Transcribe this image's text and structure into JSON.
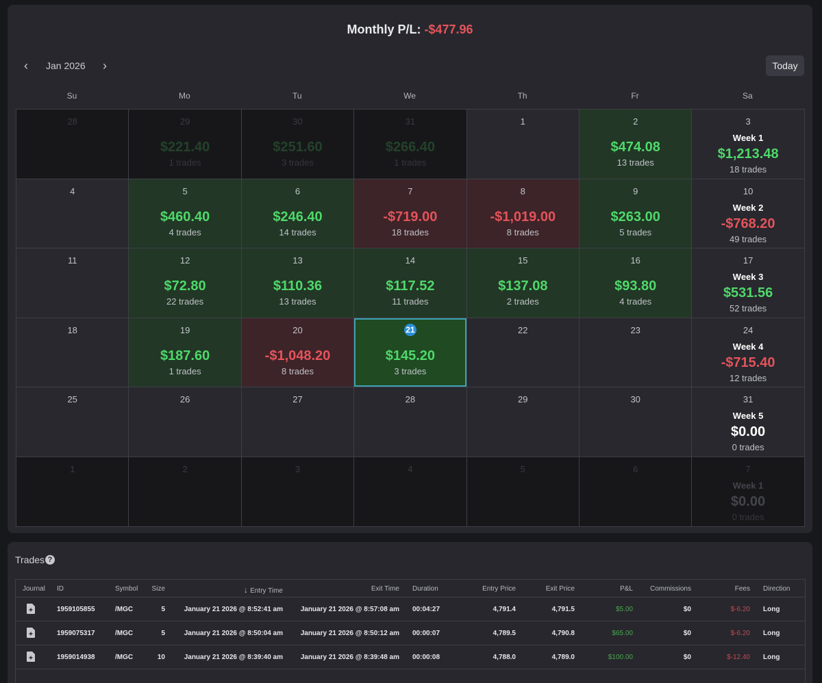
{
  "header": {
    "monthly_label": "Monthly P/L:",
    "monthly_value": "-$477.96",
    "month": "Jan 2026",
    "today_label": "Today",
    "prev_icon": "chevron-left-icon",
    "next_icon": "chevron-right-icon"
  },
  "weekdays": [
    "Su",
    "Mo",
    "Tu",
    "We",
    "Th",
    "Fr",
    "Sa"
  ],
  "calendar": {
    "rows": [
      [
        {
          "day": "28",
          "state": "other"
        },
        {
          "day": "29",
          "state": "other",
          "amount": "$221.40",
          "trades": "1 trades"
        },
        {
          "day": "30",
          "state": "other",
          "amount": "$251.60",
          "trades": "3 trades"
        },
        {
          "day": "31",
          "state": "other",
          "amount": "$266.40",
          "trades": "1 trades"
        },
        {
          "day": "1",
          "state": "cur"
        },
        {
          "day": "2",
          "state": "pos",
          "amount": "$474.08",
          "trades": "13 trades"
        },
        {
          "day": "3",
          "state": "week",
          "week": "Week 1",
          "amount": "$1,213.48",
          "trades": "18 trades",
          "sign": "pos"
        }
      ],
      [
        {
          "day": "4",
          "state": "cur"
        },
        {
          "day": "5",
          "state": "pos",
          "amount": "$460.40",
          "trades": "4 trades"
        },
        {
          "day": "6",
          "state": "pos",
          "amount": "$246.40",
          "trades": "14 trades"
        },
        {
          "day": "7",
          "state": "neg",
          "amount": "-$719.00",
          "trades": "18 trades"
        },
        {
          "day": "8",
          "state": "neg",
          "amount": "-$1,019.00",
          "trades": "8 trades"
        },
        {
          "day": "9",
          "state": "pos",
          "amount": "$263.00",
          "trades": "5 trades"
        },
        {
          "day": "10",
          "state": "week",
          "week": "Week 2",
          "amount": "-$768.20",
          "trades": "49 trades",
          "sign": "neg"
        }
      ],
      [
        {
          "day": "11",
          "state": "cur"
        },
        {
          "day": "12",
          "state": "pos",
          "amount": "$72.80",
          "trades": "22 trades"
        },
        {
          "day": "13",
          "state": "pos",
          "amount": "$110.36",
          "trades": "13 trades"
        },
        {
          "day": "14",
          "state": "pos",
          "amount": "$117.52",
          "trades": "11 trades"
        },
        {
          "day": "15",
          "state": "pos",
          "amount": "$137.08",
          "trades": "2 trades"
        },
        {
          "day": "16",
          "state": "pos",
          "amount": "$93.80",
          "trades": "4 trades"
        },
        {
          "day": "17",
          "state": "week",
          "week": "Week 3",
          "amount": "$531.56",
          "trades": "52 trades",
          "sign": "pos"
        }
      ],
      [
        {
          "day": "18",
          "state": "cur"
        },
        {
          "day": "19",
          "state": "pos",
          "amount": "$187.60",
          "trades": "1 trades"
        },
        {
          "day": "20",
          "state": "neg",
          "amount": "-$1,048.20",
          "trades": "8 trades"
        },
        {
          "day": "21",
          "state": "today",
          "amount": "$145.20",
          "trades": "3 trades"
        },
        {
          "day": "22",
          "state": "cur"
        },
        {
          "day": "23",
          "state": "cur"
        },
        {
          "day": "24",
          "state": "week",
          "week": "Week 4",
          "amount": "-$715.40",
          "trades": "12 trades",
          "sign": "neg"
        }
      ],
      [
        {
          "day": "25",
          "state": "cur"
        },
        {
          "day": "26",
          "state": "cur"
        },
        {
          "day": "27",
          "state": "cur"
        },
        {
          "day": "28",
          "state": "cur"
        },
        {
          "day": "29",
          "state": "cur"
        },
        {
          "day": "30",
          "state": "cur"
        },
        {
          "day": "31",
          "state": "week",
          "week": "Week 5",
          "amount": "$0.00",
          "trades": "0 trades",
          "sign": "zero"
        }
      ],
      [
        {
          "day": "1",
          "state": "other"
        },
        {
          "day": "2",
          "state": "other"
        },
        {
          "day": "3",
          "state": "other"
        },
        {
          "day": "4",
          "state": "other"
        },
        {
          "day": "5",
          "state": "other"
        },
        {
          "day": "6",
          "state": "other"
        },
        {
          "day": "7",
          "state": "weekother",
          "week": "Week 1",
          "amount": "$0.00",
          "trades": "0 trades",
          "sign": "zero"
        }
      ]
    ]
  },
  "trades": {
    "title": "Trades",
    "help_icon": "help-icon",
    "columns": [
      "Journal",
      "ID",
      "Symbol",
      "Size",
      "Entry Time",
      "Exit Time",
      "Duration",
      "Entry Price",
      "Exit Price",
      "P&L",
      "Commissions",
      "Fees",
      "Direction"
    ],
    "sort_icon": "arrow-down-icon",
    "rows": [
      {
        "id": "1959105855",
        "symbol": "/MGC",
        "size": "5",
        "entry_time": "January 21 2026 @ 8:52:41 am",
        "exit_time": "January 21 2026 @ 8:57:08 am",
        "duration": "00:04:27",
        "entry_price": "4,791.4",
        "exit_price": "4,791.5",
        "pl": "$5.00",
        "commissions": "$0",
        "fees": "$-6.20",
        "direction": "Long"
      },
      {
        "id": "1959075317",
        "symbol": "/MGC",
        "size": "5",
        "entry_time": "January 21 2026 @ 8:50:04 am",
        "exit_time": "January 21 2026 @ 8:50:12 am",
        "duration": "00:00:07",
        "entry_price": "4,789.5",
        "exit_price": "4,790.8",
        "pl": "$65.00",
        "commissions": "$0",
        "fees": "$-6.20",
        "direction": "Long"
      },
      {
        "id": "1959014938",
        "symbol": "/MGC",
        "size": "10",
        "entry_time": "January 21 2026 @ 8:39:40 am",
        "exit_time": "January 21 2026 @ 8:39:48 am",
        "duration": "00:00:08",
        "entry_price": "4,788.0",
        "exit_price": "4,789.0",
        "pl": "$100.00",
        "commissions": "$0",
        "fees": "$-12.40",
        "direction": "Long"
      }
    ]
  },
  "colors": {
    "positive": "#4fd86a",
    "negative": "#e5535b",
    "today_ring": "#3ea0b3",
    "today_badge": "#2a8fd6"
  }
}
